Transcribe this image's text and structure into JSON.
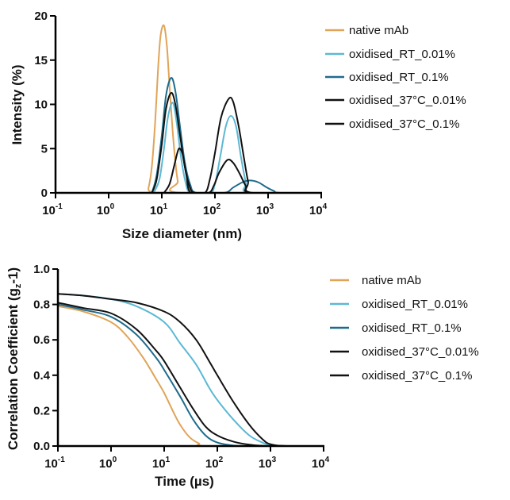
{
  "chart_data": [
    {
      "type": "line",
      "xlabel": "Size diameter (nm)",
      "ylabel": "Intensity (%)",
      "xscale": "log",
      "xlim": [
        0.1,
        10000
      ],
      "ylim": [
        0,
        20
      ],
      "xticks": [
        0.1,
        1,
        10,
        100,
        1000,
        10000
      ],
      "yticks": [
        0,
        5,
        10,
        15,
        20
      ],
      "legend": "right",
      "series": [
        {
          "name": "native mAb",
          "color": "#E0A458",
          "points": [
            [
              0.3,
              0
            ],
            [
              5,
              0
            ],
            [
              5.6,
              0.5
            ],
            [
              6.5,
              3
            ],
            [
              7.5,
              8
            ],
            [
              8.5,
              14
            ],
            [
              9.5,
              17.8
            ],
            [
              11,
              18.9
            ],
            [
              12.5,
              16.5
            ],
            [
              14,
              12
            ],
            [
              16,
              7
            ],
            [
              18,
              3.5
            ],
            [
              20,
              1.3
            ],
            [
              23,
              0
            ],
            [
              10000,
              0
            ]
          ]
        },
        {
          "name": "oxidised_RT_0.01%",
          "color": "#5BB8D4",
          "points": [
            [
              7,
              0
            ],
            [
              9,
              1.5
            ],
            [
              11,
              5
            ],
            [
              13,
              8.5
            ],
            [
              16,
              10.2
            ],
            [
              19,
              8
            ],
            [
              23,
              4
            ],
            [
              28,
              1.2
            ],
            [
              35,
              0
            ],
            [
              80,
              0
            ],
            [
              100,
              1
            ],
            [
              125,
              4
            ],
            [
              160,
              7.5
            ],
            [
              200,
              8.7
            ],
            [
              250,
              7.5
            ],
            [
              310,
              4
            ],
            [
              380,
              1.2
            ],
            [
              450,
              0
            ],
            [
              10000,
              0
            ]
          ]
        },
        {
          "name": "oxidised_RT_0.1%",
          "color": "#1E6B8C",
          "points": [
            [
              6.5,
              0
            ],
            [
              8,
              2
            ],
            [
              10,
              6.5
            ],
            [
              12,
              11
            ],
            [
              15,
              13
            ],
            [
              18,
              11.5
            ],
            [
              22,
              7.5
            ],
            [
              27,
              3.5
            ],
            [
              34,
              1
            ],
            [
              45,
              0
            ],
            [
              150,
              0
            ],
            [
              220,
              0.6
            ],
            [
              330,
              1.2
            ],
            [
              450,
              1.4
            ],
            [
              650,
              1.2
            ],
            [
              950,
              0.6
            ],
            [
              1300,
              0.2
            ],
            [
              1700,
              0
            ],
            [
              10000,
              0
            ]
          ]
        },
        {
          "name": "oxidised_37°C_0.01%",
          "color": "#111111",
          "points": [
            [
              6.5,
              0
            ],
            [
              8,
              1.5
            ],
            [
              10,
              5.5
            ],
            [
              12,
              9.5
            ],
            [
              15,
              11.3
            ],
            [
              18,
              10
            ],
            [
              22,
              6.5
            ],
            [
              27,
              3
            ],
            [
              33,
              0.8
            ],
            [
              40,
              0
            ],
            [
              65,
              0
            ],
            [
              80,
              1.5
            ],
            [
              100,
              4.5
            ],
            [
              130,
              8.5
            ],
            [
              180,
              10.6
            ],
            [
              220,
              10.3
            ],
            [
              280,
              7.5
            ],
            [
              350,
              4
            ],
            [
              420,
              1.3
            ],
            [
              500,
              0
            ],
            [
              10000,
              0
            ]
          ]
        },
        {
          "name": "oxidised_37°C_0.1%",
          "color": "#111111",
          "points": [
            [
              11,
              0
            ],
            [
              14,
              1
            ],
            [
              17,
              3
            ],
            [
              20,
              4.7
            ],
            [
              22,
              5
            ],
            [
              25,
              4.2
            ],
            [
              29,
              2
            ],
            [
              35,
              0
            ],
            [
              75,
              0
            ],
            [
              95,
              0.8
            ],
            [
              120,
              2.3
            ],
            [
              170,
              3.7
            ],
            [
              220,
              3.4
            ],
            [
              290,
              2.2
            ],
            [
              380,
              0.8
            ],
            [
              500,
              0
            ],
            [
              10000,
              0
            ]
          ]
        }
      ]
    },
    {
      "type": "line",
      "xlabel": "Time (µs)",
      "ylabel_parts": [
        "Correlation Coefficient (g",
        "z",
        "-1)"
      ],
      "xscale": "log",
      "xlim": [
        0.1,
        10000
      ],
      "ylim": [
        0,
        1.0
      ],
      "xticks": [
        0.1,
        1,
        10,
        100,
        1000,
        10000
      ],
      "yticks": [
        "0.0",
        "0.2",
        "0.4",
        "0.6",
        "0.8",
        "1.0"
      ],
      "legend": "right",
      "series": [
        {
          "name": "native mAb",
          "color": "#E0A458",
          "points": [
            [
              0.1,
              0.79
            ],
            [
              0.3,
              0.76
            ],
            [
              1,
              0.7
            ],
            [
              2,
              0.62
            ],
            [
              4,
              0.5
            ],
            [
              7,
              0.38
            ],
            [
              10,
              0.3
            ],
            [
              15,
              0.19
            ],
            [
              20,
              0.12
            ],
            [
              30,
              0.05
            ],
            [
              45,
              0.015
            ],
            [
              70,
              0
            ],
            [
              10000,
              0
            ]
          ]
        },
        {
          "name": "oxidised_RT_0.01%",
          "color": "#5BB8D4",
          "points": [
            [
              0.1,
              0.86
            ],
            [
              0.3,
              0.85
            ],
            [
              1,
              0.83
            ],
            [
              3,
              0.79
            ],
            [
              10,
              0.7
            ],
            [
              20,
              0.58
            ],
            [
              40,
              0.46
            ],
            [
              70,
              0.33
            ],
            [
              100,
              0.26
            ],
            [
              200,
              0.15
            ],
            [
              400,
              0.06
            ],
            [
              700,
              0.02
            ],
            [
              1000,
              0.005
            ],
            [
              2000,
              0
            ],
            [
              10000,
              0
            ]
          ]
        },
        {
          "name": "oxidised_RT_0.1%",
          "color": "#1E6B8C",
          "points": [
            [
              0.1,
              0.8
            ],
            [
              0.3,
              0.77
            ],
            [
              1,
              0.73
            ],
            [
              3,
              0.63
            ],
            [
              7,
              0.5
            ],
            [
              10,
              0.43
            ],
            [
              20,
              0.28
            ],
            [
              35,
              0.15
            ],
            [
              60,
              0.06
            ],
            [
              100,
              0.02
            ],
            [
              200,
              0.003
            ],
            [
              400,
              0
            ],
            [
              10000,
              0
            ]
          ]
        },
        {
          "name": "oxidised_37°C_0.01%",
          "color": "#111111",
          "points": [
            [
              0.1,
              0.86
            ],
            [
              0.3,
              0.85
            ],
            [
              1,
              0.83
            ],
            [
              3,
              0.81
            ],
            [
              10,
              0.76
            ],
            [
              20,
              0.7
            ],
            [
              40,
              0.6
            ],
            [
              70,
              0.48
            ],
            [
              100,
              0.4
            ],
            [
              200,
              0.25
            ],
            [
              400,
              0.12
            ],
            [
              700,
              0.04
            ],
            [
              1000,
              0.01
            ],
            [
              2000,
              0
            ],
            [
              10000,
              0
            ]
          ]
        },
        {
          "name": "oxidised_37°C_0.1%",
          "color": "#111111",
          "points": [
            [
              0.1,
              0.81
            ],
            [
              0.3,
              0.78
            ],
            [
              1,
              0.75
            ],
            [
              3,
              0.66
            ],
            [
              7,
              0.54
            ],
            [
              10,
              0.48
            ],
            [
              20,
              0.33
            ],
            [
              35,
              0.21
            ],
            [
              60,
              0.11
            ],
            [
              100,
              0.06
            ],
            [
              200,
              0.025
            ],
            [
              400,
              0.008
            ],
            [
              1000,
              0
            ],
            [
              10000,
              0
            ]
          ]
        }
      ]
    }
  ]
}
